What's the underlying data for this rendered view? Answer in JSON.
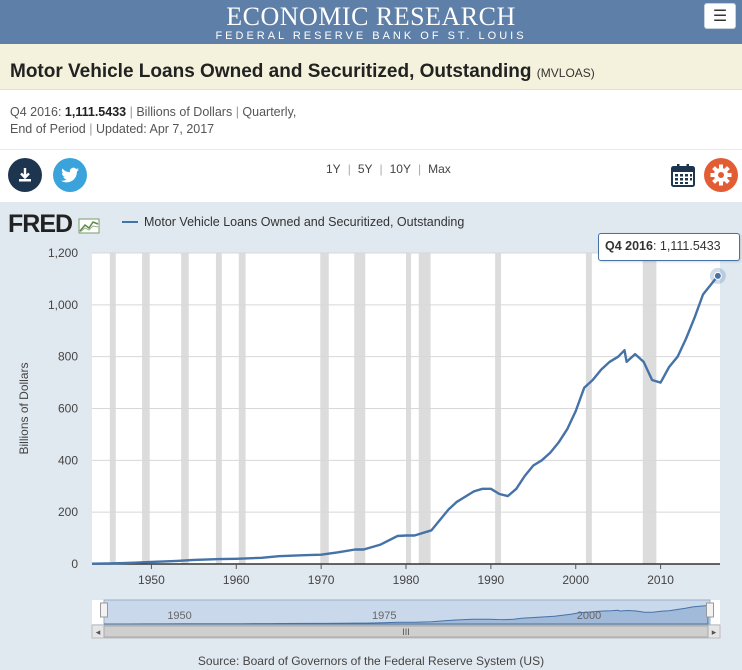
{
  "header": {
    "title": "ECONOMIC RESEARCH",
    "subtitle": "FEDERAL RESERVE BANK OF ST. LOUIS",
    "menu_icon": "hamburger-icon"
  },
  "series": {
    "title": "Motor Vehicle Loans Owned and Securitized, Outstanding",
    "code": "(MVLOAS)",
    "latest_period": "Q4 2016:",
    "latest_value": "1,111.5433",
    "units": "Billions of Dollars",
    "frequency": "Quarterly,",
    "aggregation": "End of Period",
    "updated_label": "Updated:",
    "updated_date": "Apr 7, 2017"
  },
  "toolbar": {
    "download_icon": "download-icon",
    "twitter_icon": "twitter-icon",
    "ranges": [
      "1Y",
      "5Y",
      "10Y",
      "Max"
    ],
    "calendar_icon": "calendar-icon",
    "settings_icon": "gear-icon"
  },
  "logo": {
    "text": "FRED"
  },
  "tooltip": {
    "period": "Q4 2016",
    "value": ": 1,111.5433"
  },
  "source": "Source: Board of Governors of the Federal Reserve System (US)",
  "colors": {
    "header": "#5d7fa8",
    "line": "#4572a7",
    "recession": "#dcdcdc",
    "plot_background": "#ffffff",
    "chart_background": "#e1e9f0",
    "gear_button": "#e25d34",
    "twitter_button": "#3aa3dc",
    "download_button": "#1e3550"
  },
  "chart_data": {
    "type": "line",
    "title": "",
    "ylabel": "Billions of Dollars",
    "xlim": [
      1943,
      2017
    ],
    "ylim": [
      0,
      1200
    ],
    "yticks": [
      0,
      200,
      400,
      600,
      800,
      1000,
      1200
    ],
    "ytick_labels": [
      "0",
      "200",
      "400",
      "600",
      "800",
      "1,000",
      "1,200"
    ],
    "xticks": [
      1950,
      1960,
      1970,
      1980,
      1990,
      2000,
      2010
    ],
    "grid": true,
    "legend": "top-left",
    "series": [
      {
        "name": "Motor Vehicle Loans Owned and Securitized, Outstanding",
        "x": [
          1943,
          1945,
          1948,
          1950,
          1953,
          1955,
          1958,
          1960,
          1963,
          1965,
          1968,
          1970,
          1972,
          1974,
          1975,
          1977,
          1979,
          1980,
          1981,
          1983,
          1985,
          1986,
          1988,
          1989,
          1990,
          1991,
          1992,
          1993,
          1994,
          1995,
          1996,
          1997,
          1998,
          1999,
          2000,
          2001,
          2002,
          2003,
          2004,
          2005,
          2005.75,
          2006,
          2007,
          2008,
          2009,
          2010,
          2011,
          2012,
          2013,
          2014,
          2015,
          2016.75
        ],
        "y": [
          1,
          2,
          5,
          8,
          12,
          16,
          19,
          20,
          24,
          30,
          34,
          36,
          45,
          56,
          56,
          75,
          108,
          110,
          110,
          130,
          210,
          240,
          280,
          290,
          290,
          270,
          262,
          290,
          340,
          380,
          400,
          430,
          470,
          520,
          590,
          680,
          710,
          750,
          780,
          800,
          825,
          780,
          810,
          780,
          710,
          700,
          760,
          800,
          870,
          950,
          1040,
          1111.5433
        ]
      }
    ],
    "recessions": [
      [
        1945.1,
        1945.8
      ],
      [
        1948.9,
        1949.8
      ],
      [
        1953.5,
        1954.4
      ],
      [
        1957.6,
        1958.3
      ],
      [
        1960.3,
        1961.1
      ],
      [
        1969.9,
        1970.9
      ],
      [
        1973.9,
        1975.2
      ],
      [
        1980.0,
        1980.6
      ],
      [
        1981.5,
        1982.9
      ],
      [
        1990.5,
        1991.2
      ],
      [
        2001.2,
        2001.9
      ],
      [
        2007.9,
        2009.5
      ]
    ],
    "navigator": {
      "tick_labels": [
        "1950",
        "1975",
        "2000"
      ],
      "handle_text": "III"
    }
  }
}
